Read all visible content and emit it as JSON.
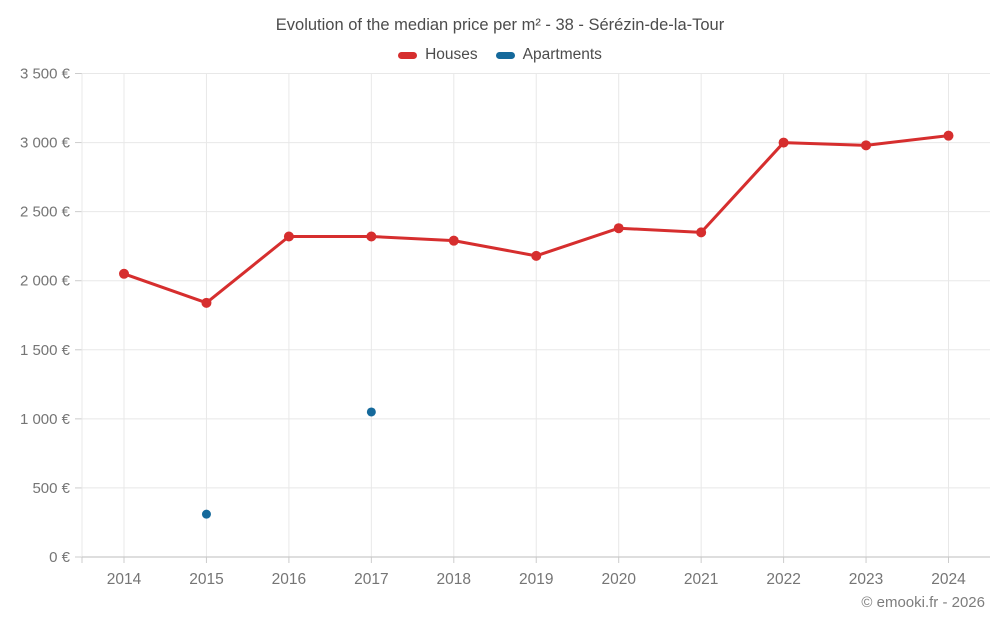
{
  "title": "Evolution of the median price per m² - 38 - Sérézin-de-la-Tour",
  "legend": [
    {
      "label": "Houses",
      "color": "#d62e2e"
    },
    {
      "label": "Apartments",
      "color": "#15699b"
    }
  ],
  "attribution": "© emooki.fr - 2026",
  "chart_data": {
    "type": "line",
    "title": "Evolution of the median price per m² - 38 - Sérézin-de-la-Tour",
    "x": [
      2014,
      2015,
      2016,
      2017,
      2018,
      2019,
      2020,
      2021,
      2022,
      2023,
      2024
    ],
    "xticks": [
      "2014",
      "2015",
      "2016",
      "2017",
      "2018",
      "2019",
      "2020",
      "2021",
      "2022",
      "2023",
      "2024"
    ],
    "series": [
      {
        "name": "Houses",
        "color": "#d62e2e",
        "style": "line+markers",
        "values": [
          2050,
          1840,
          2320,
          2320,
          2290,
          2180,
          2380,
          2350,
          3000,
          2980,
          3050
        ]
      },
      {
        "name": "Apartments",
        "color": "#15699b",
        "style": "markers",
        "values": [
          null,
          310,
          null,
          1050,
          null,
          null,
          null,
          null,
          null,
          null,
          null
        ]
      }
    ],
    "ylim": [
      0,
      3500
    ],
    "ytick_step": 500,
    "yticks": [
      "0 €",
      "500 €",
      "1 000 €",
      "1 500 €",
      "2 000 €",
      "2 500 €",
      "3 000 €",
      "3 500 €"
    ],
    "y_unit": "€",
    "grid": true,
    "legend_position": "top-center"
  },
  "colors": {
    "title_text": "#4c4c4c",
    "axis_text": "#757575",
    "gridline": "#e8e8e8",
    "axis_line": "#c9c9c9",
    "tick": "#cccccc",
    "background": "#ffffff"
  }
}
